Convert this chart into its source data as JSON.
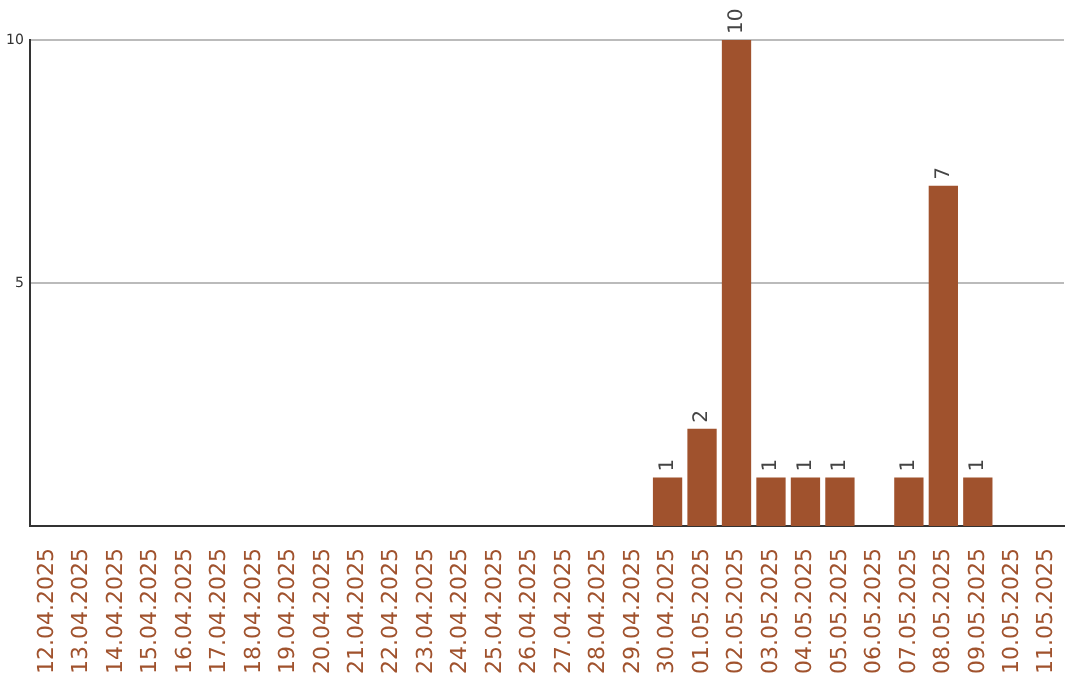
{
  "chart_data": {
    "type": "bar",
    "categories": [
      "12.04.2025",
      "13.04.2025",
      "14.04.2025",
      "15.04.2025",
      "16.04.2025",
      "17.04.2025",
      "18.04.2025",
      "19.04.2025",
      "20.04.2025",
      "21.04.2025",
      "22.04.2025",
      "23.04.2025",
      "24.04.2025",
      "25.04.2025",
      "26.04.2025",
      "27.04.2025",
      "28.04.2025",
      "29.04.2025",
      "30.04.2025",
      "01.05.2025",
      "02.05.2025",
      "03.05.2025",
      "04.05.2025",
      "05.05.2025",
      "06.05.2025",
      "07.05.2025",
      "08.05.2025",
      "09.05.2025",
      "10.05.2025",
      "11.05.2025"
    ],
    "values": [
      0,
      0,
      0,
      0,
      0,
      0,
      0,
      0,
      0,
      0,
      0,
      0,
      0,
      0,
      0,
      0,
      0,
      0,
      1,
      2,
      10,
      1,
      1,
      1,
      0,
      1,
      7,
      1,
      0,
      0
    ],
    "value_labels": [
      null,
      null,
      null,
      null,
      null,
      null,
      null,
      null,
      null,
      null,
      null,
      null,
      null,
      null,
      null,
      null,
      null,
      null,
      "1",
      "2",
      "10",
      "1",
      "1",
      "1",
      null,
      "1",
      "7",
      "1",
      null,
      null
    ],
    "color": "#a0522d",
    "ylim": [
      0,
      10
    ],
    "yticks": [
      5,
      10
    ],
    "grid": "y",
    "legend": false
  }
}
